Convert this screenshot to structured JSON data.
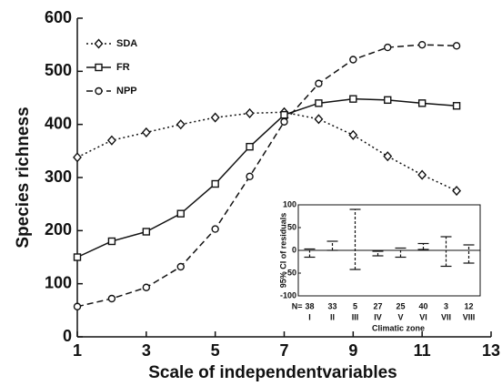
{
  "chart_data": [
    {
      "type": "line",
      "ylabel": "Species  richness",
      "xlabel": "Scale of independentvariables",
      "x": [
        1,
        2,
        3,
        4,
        5,
        6,
        7,
        8,
        9,
        10,
        11,
        12
      ],
      "series": [
        {
          "name": "SDA",
          "color": "#111111",
          "marker": "diamond",
          "dash": "dotted",
          "values": [
            338,
            370,
            385,
            400,
            413,
            421,
            423,
            410,
            380,
            340,
            305,
            275
          ]
        },
        {
          "name": "FR",
          "color": "#111111",
          "marker": "square",
          "dash": "solid",
          "values": [
            150,
            180,
            198,
            232,
            288,
            358,
            418,
            440,
            448,
            446,
            440,
            435
          ]
        },
        {
          "name": "NPP",
          "color": "#111111",
          "marker": "circle",
          "dash": "dashed",
          "values": [
            57,
            72,
            93,
            132,
            203,
            302,
            405,
            477,
            522,
            545,
            550,
            548
          ]
        }
      ],
      "xlim": [
        1,
        13
      ],
      "xticks": [
        1,
        3,
        5,
        7,
        9,
        11,
        13
      ],
      "ylim": [
        0,
        600
      ],
      "yticks": [
        0,
        100,
        200,
        300,
        400,
        500,
        600
      ],
      "legend": "top-left"
    },
    {
      "type": "errorbar",
      "ylabel": "95% CI of  residuals",
      "xlabel": "Climatic zone",
      "n_prefix": "N=",
      "n": [
        38,
        33,
        5,
        27,
        25,
        40,
        3,
        12
      ],
      "categories": [
        "I",
        "II",
        "III",
        "IV",
        "V",
        "VI",
        "VII",
        "VIII"
      ],
      "lower": [
        -15,
        0,
        -42,
        -12,
        -15,
        2,
        -35,
        -28
      ],
      "upper": [
        3,
        20,
        90,
        -2,
        5,
        15,
        30,
        12
      ],
      "ylim": [
        -100,
        100
      ],
      "yticks": [
        100,
        50,
        0,
        -50,
        -100
      ],
      "zero_line": true
    }
  ]
}
